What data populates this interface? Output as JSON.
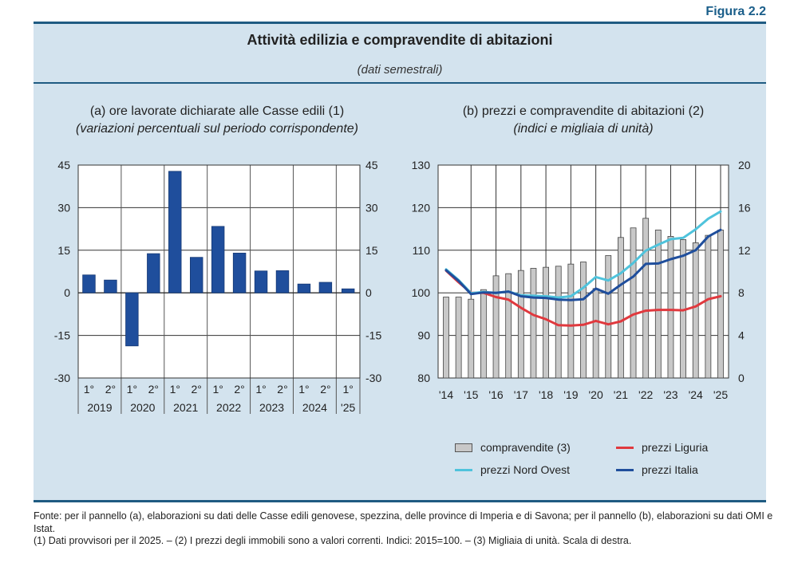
{
  "figure_label": "Figura 2.2",
  "title": "Attività edilizia e compravendite di abitazioni",
  "subtitle": "(dati semestrali)",
  "panel_a": {
    "title": "(a) ore lavorate dichiarate alle Casse edili (1)",
    "subtitle": "(variazioni percentuali sul periodo corrispondente)"
  },
  "panel_b": {
    "title": "(b) prezzi e compravendite di abitazioni (2)",
    "subtitle": "(indici e migliaia di unità)"
  },
  "legend": {
    "compravendite": "compravendite (3)",
    "liguria": "prezzi Liguria",
    "nord_ovest": "prezzi Nord Ovest",
    "italia": "prezzi Italia"
  },
  "colors": {
    "bar_a": "#1f4e9c",
    "bar_b": "#c8c8c8",
    "liguria": "#e0393e",
    "nord_ovest": "#4fc3dc",
    "italia": "#1f4e9c",
    "frame": "#1f5b82",
    "background": "#d3e3ee"
  },
  "footnotes": [
    "Fonte: per il pannello (a), elaborazioni su dati delle Casse edili genovese, spezzina, delle province di Imperia e di Savona; per il pannello (b), elaborazioni su dati OMI e Istat.",
    "(1) Dati provvisori per il 2025. – (2) I prezzi degli immobili sono a valori correnti. Indici: 2015=100. – (3) Migliaia di unità. Scala di destra."
  ],
  "chart_data": [
    {
      "type": "bar",
      "title": "(a) ore lavorate dichiarate alle Casse edili (1)",
      "subtitle": "(variazioni percentuali sul periodo corrispondente)",
      "categories": [
        "2019 1°",
        "2019 2°",
        "2020 1°",
        "2020 2°",
        "2021 1°",
        "2021 2°",
        "2022 1°",
        "2022 2°",
        "2023 1°",
        "2023 2°",
        "2024 1°",
        "2024 2°",
        "2025 1°"
      ],
      "semester_labels": [
        "1°",
        "2°",
        "1°",
        "2°",
        "1°",
        "2°",
        "1°",
        "2°",
        "1°",
        "2°",
        "1°",
        "2°",
        "1°"
      ],
      "year_labels": [
        "2019",
        "2020",
        "2021",
        "2022",
        "2023",
        "2024",
        "'25"
      ],
      "values": [
        6.3,
        4.5,
        -18.7,
        13.8,
        42.8,
        12.5,
        23.4,
        14.0,
        7.7,
        7.8,
        3.1,
        3.7,
        1.4
      ],
      "ylim": [
        -30,
        45
      ],
      "yticks": [
        45,
        30,
        15,
        0,
        -15,
        -30
      ],
      "ylabel": "",
      "xlabel": "",
      "grid": true,
      "axes": "left and right mirrored"
    },
    {
      "type": "bar+line",
      "title": "(b) prezzi e compravendite di abitazioni (2)",
      "subtitle": "(indici e migliaia di unità)",
      "x": [
        "2014 H1",
        "2014 H2",
        "2015 H1",
        "2015 H2",
        "2016 H1",
        "2016 H2",
        "2017 H1",
        "2017 H2",
        "2018 H1",
        "2018 H2",
        "2019 H1",
        "2019 H2",
        "2020 H1",
        "2020 H2",
        "2021 H1",
        "2021 H2",
        "2022 H1",
        "2022 H2",
        "2023 H1",
        "2023 H2",
        "2024 H1",
        "2024 H2",
        "2025 H1"
      ],
      "xtick_labels": [
        "'14",
        "'15",
        "'16",
        "'17",
        "'18",
        "'19",
        "'20",
        "'21",
        "'22",
        "'23",
        "'24",
        "'25"
      ],
      "left_axis": {
        "ylim": [
          80,
          130
        ],
        "yticks": [
          130,
          120,
          110,
          100,
          90,
          80
        ]
      },
      "right_axis": {
        "ylim": [
          0,
          20
        ],
        "yticks": [
          20,
          16,
          12,
          8,
          4,
          0
        ]
      },
      "series": [
        {
          "name": "compravendite (3)",
          "kind": "bar",
          "axis": "right",
          "values": [
            7.6,
            7.6,
            7.4,
            8.3,
            9.6,
            9.8,
            10.1,
            10.3,
            10.4,
            10.5,
            10.7,
            10.9,
            8.4,
            11.5,
            13.2,
            14.1,
            15.0,
            13.9,
            13.3,
            13.0,
            12.7,
            13.4,
            13.9
          ]
        },
        {
          "name": "prezzi Liguria",
          "kind": "line",
          "axis": "left",
          "values": [
            105.2,
            102.5,
            100.0,
            100.0,
            99.0,
            98.4,
            96.5,
            94.8,
            93.8,
            92.4,
            92.3,
            92.5,
            93.4,
            92.6,
            93.3,
            94.9,
            95.8,
            96.0,
            96.0,
            95.9,
            96.8,
            98.5,
            99.2
          ]
        },
        {
          "name": "prezzi Nord Ovest",
          "kind": "line",
          "axis": "left",
          "values": [
            105.5,
            103.0,
            99.9,
            100.2,
            100.0,
            100.3,
            99.4,
            99.3,
            99.2,
            98.9,
            99.2,
            101.2,
            103.7,
            102.9,
            104.6,
            107.0,
            109.9,
            111.3,
            112.6,
            112.9,
            114.9,
            117.4,
            119.1
          ]
        },
        {
          "name": "prezzi Italia",
          "kind": "line",
          "axis": "left",
          "values": [
            105.3,
            102.8,
            99.7,
            100.1,
            100.0,
            100.3,
            99.2,
            98.9,
            98.8,
            98.4,
            98.3,
            98.5,
            101.0,
            99.8,
            101.9,
            103.8,
            106.8,
            106.9,
            107.9,
            108.7,
            110.0,
            113.2,
            114.8
          ]
        }
      ],
      "legend_position": "bottom",
      "grid": true
    }
  ]
}
